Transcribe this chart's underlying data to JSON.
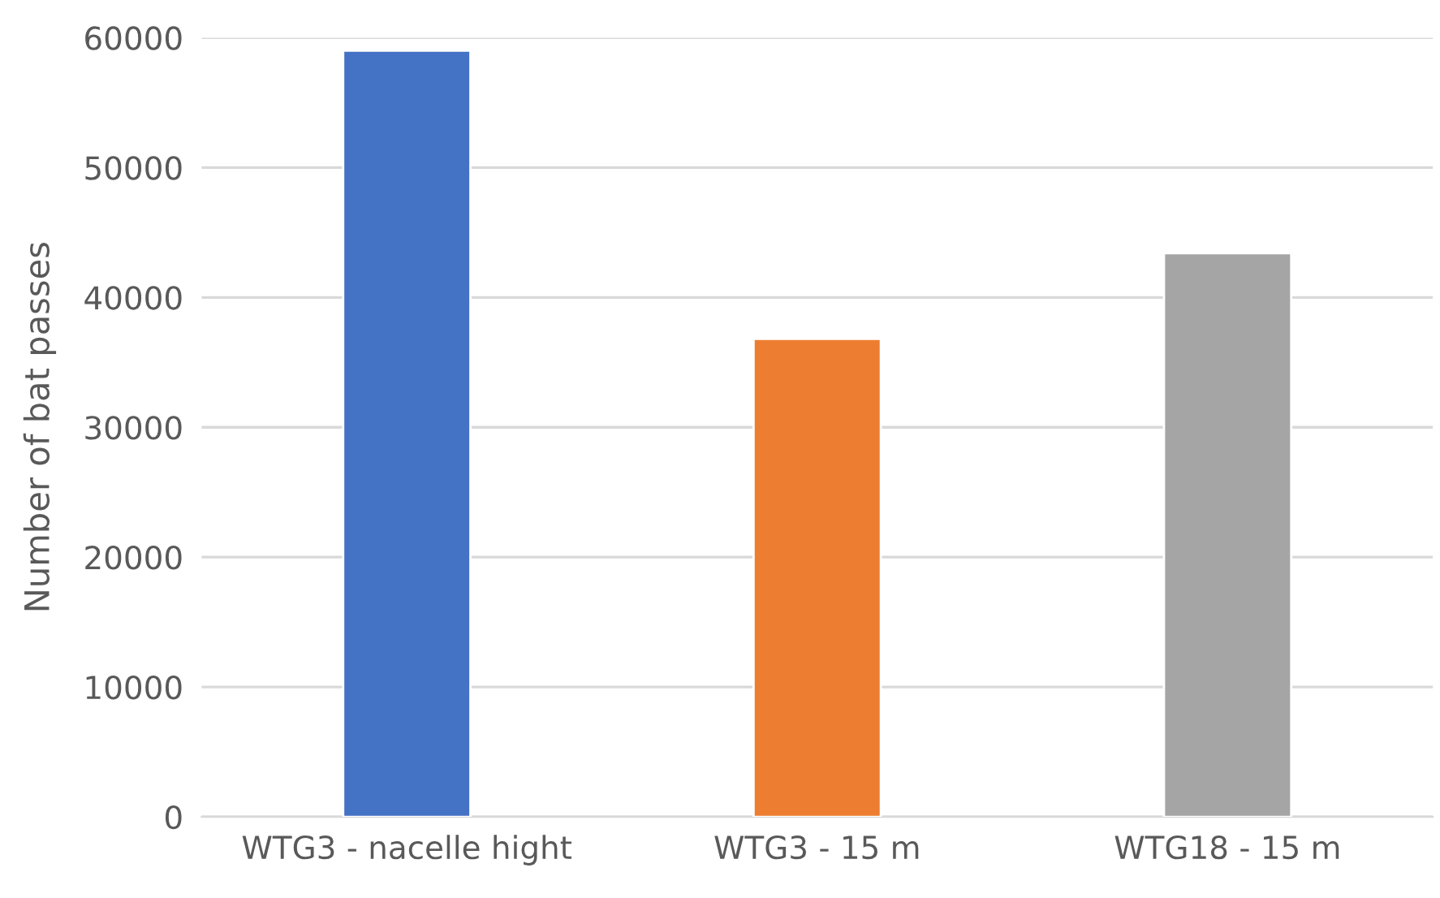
{
  "chart_data": {
    "type": "bar",
    "ylabel": "Number of bat passes",
    "categories": [
      "WTG3 - nacelle hight",
      "WTG3 - 15 m",
      "WTG18 - 15 m"
    ],
    "values": [
      59000,
      36800,
      43400
    ],
    "colors": [
      "#4472c4",
      "#ed7d31",
      "#a5a5a5"
    ],
    "ylim": [
      0,
      60000
    ],
    "yticks": [
      0,
      10000,
      20000,
      30000,
      40000,
      50000,
      60000
    ],
    "grid": "y"
  }
}
